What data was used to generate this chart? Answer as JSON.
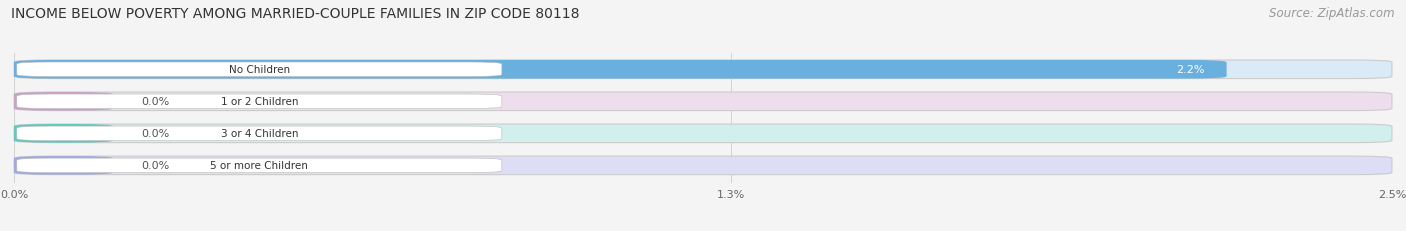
{
  "title": "INCOME BELOW POVERTY AMONG MARRIED-COUPLE FAMILIES IN ZIP CODE 80118",
  "source": "Source: ZipAtlas.com",
  "categories": [
    "No Children",
    "1 or 2 Children",
    "3 or 4 Children",
    "5 or more Children"
  ],
  "values": [
    2.2,
    0.0,
    0.0,
    0.0
  ],
  "xlim": [
    0,
    2.5
  ],
  "xticks": [
    0.0,
    1.3,
    2.5
  ],
  "xtick_labels": [
    "0.0%",
    "1.3%",
    "2.5%"
  ],
  "bar_colors": [
    "#6ab0de",
    "#c9a0c8",
    "#5ec8c0",
    "#a0a8e0"
  ],
  "bar_bg_colors": [
    "#daeaf7",
    "#eedeed",
    "#d0efed",
    "#ddddf5"
  ],
  "title_fontsize": 10,
  "source_fontsize": 8.5,
  "bar_height": 0.58,
  "background_color": "#f4f4f4",
  "value_label_color": "#555555",
  "value_label_color_white": "#ffffff"
}
